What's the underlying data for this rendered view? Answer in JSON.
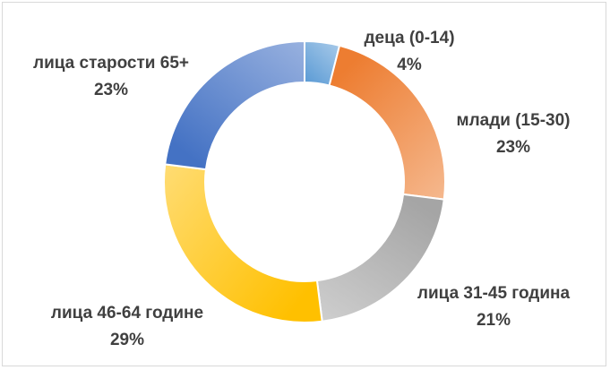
{
  "chart_data": {
    "type": "pie",
    "variant": "doughnut",
    "title": "",
    "legend": "none",
    "slices": [
      {
        "label": "деца (0-14)",
        "value": 4,
        "display": "4%",
        "color": "#5b9bd5"
      },
      {
        "label": "млади (15-30)",
        "value": 23,
        "display": "23%",
        "color": "#ed7d31"
      },
      {
        "label": "лица  31-45 година",
        "value": 21,
        "display": "21%",
        "color": "#a5a5a5"
      },
      {
        "label": "лица 46-64 године",
        "value": 29,
        "display": "29%",
        "color": "#ffc000"
      },
      {
        "label": "лица старости 65+",
        "value": 23,
        "display": "23%",
        "color": "#4472c4"
      }
    ]
  }
}
